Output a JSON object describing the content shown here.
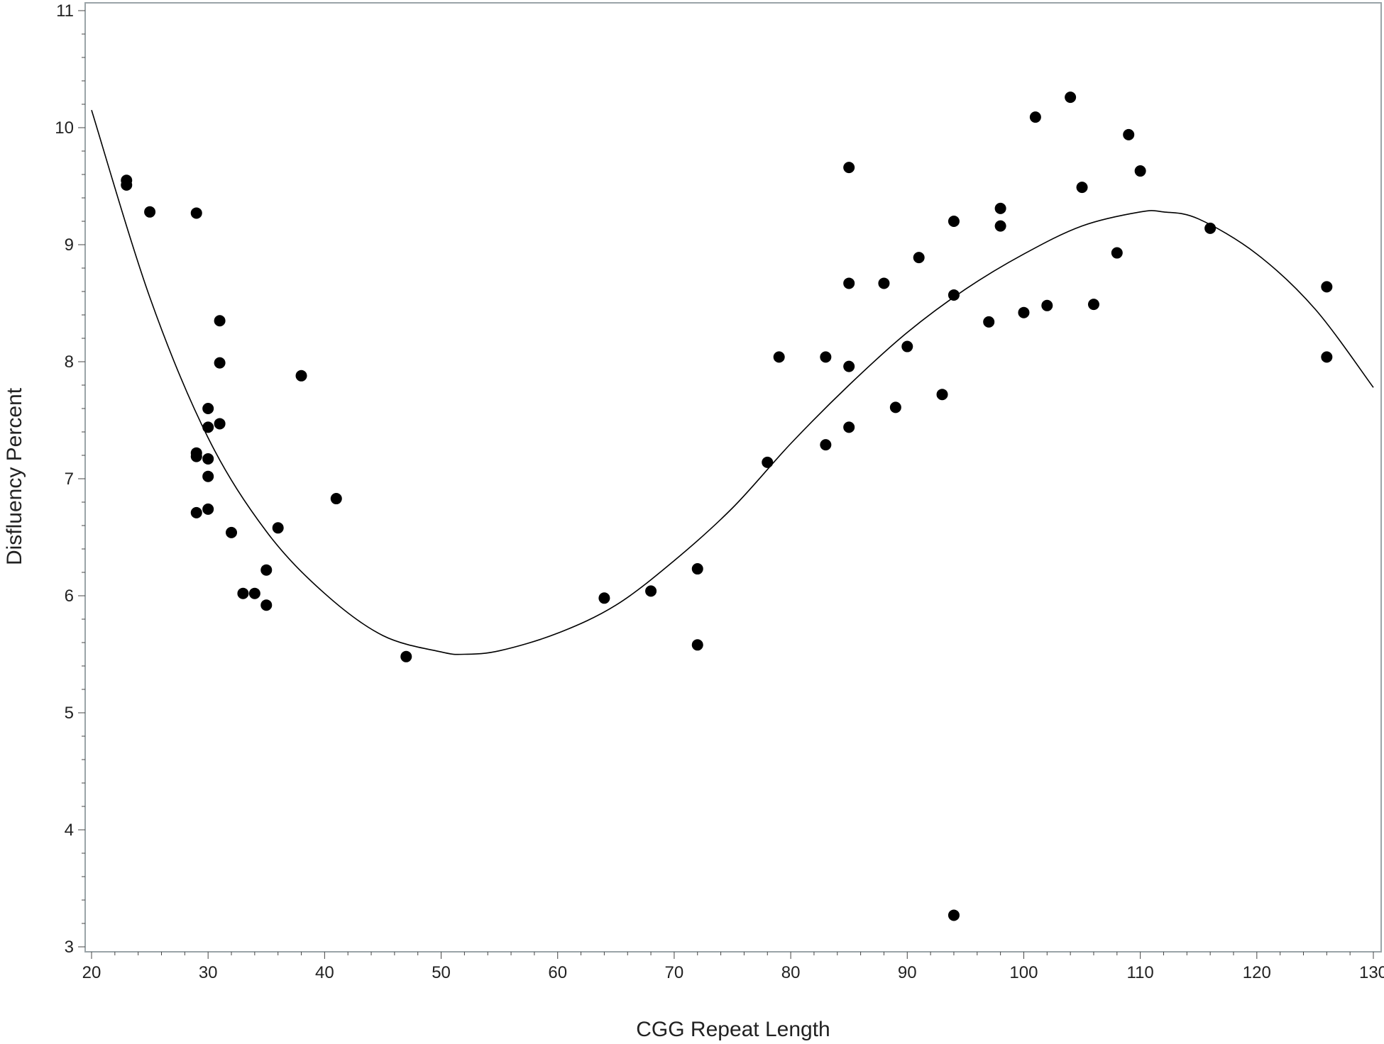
{
  "chart_data": {
    "type": "scatter",
    "title": "",
    "xlabel": "CGG Repeat Length",
    "ylabel": "Disfluency Percent",
    "xlim": [
      20,
      130
    ],
    "ylim": [
      3,
      11
    ],
    "x_ticks": [
      20,
      30,
      40,
      50,
      60,
      70,
      80,
      90,
      100,
      110,
      120,
      130
    ],
    "y_ticks": [
      3,
      4,
      5,
      6,
      7,
      8,
      9,
      10,
      11
    ],
    "grid": false,
    "legend": "none",
    "colors": {
      "points": "#000000",
      "fit_line": "#000000",
      "frame": "#9aa4a8"
    },
    "series": [
      {
        "kind": "points",
        "points": [
          [
            23,
            9.55
          ],
          [
            23,
            9.51
          ],
          [
            25,
            9.28
          ],
          [
            29,
            9.27
          ],
          [
            29,
            7.22
          ],
          [
            29,
            7.19
          ],
          [
            29,
            6.71
          ],
          [
            30,
            7.6
          ],
          [
            30,
            7.44
          ],
          [
            30,
            7.17
          ],
          [
            30,
            7.02
          ],
          [
            30,
            6.74
          ],
          [
            31,
            8.35
          ],
          [
            31,
            7.99
          ],
          [
            31,
            7.47
          ],
          [
            32,
            6.54
          ],
          [
            33,
            6.02
          ],
          [
            34,
            6.02
          ],
          [
            35,
            6.22
          ],
          [
            35,
            5.92
          ],
          [
            36,
            6.58
          ],
          [
            38,
            7.88
          ],
          [
            41,
            6.83
          ],
          [
            47,
            5.48
          ],
          [
            64,
            5.98
          ],
          [
            68,
            6.04
          ],
          [
            72,
            6.23
          ],
          [
            72,
            5.58
          ],
          [
            78,
            7.14
          ],
          [
            79,
            8.04
          ],
          [
            83,
            8.04
          ],
          [
            83,
            7.29
          ],
          [
            85,
            9.66
          ],
          [
            85,
            8.67
          ],
          [
            85,
            7.96
          ],
          [
            85,
            7.44
          ],
          [
            88,
            8.67
          ],
          [
            89,
            7.61
          ],
          [
            90,
            8.13
          ],
          [
            91,
            8.89
          ],
          [
            93,
            7.72
          ],
          [
            94,
            9.2
          ],
          [
            94,
            8.57
          ],
          [
            94,
            3.27
          ],
          [
            97,
            8.34
          ],
          [
            98,
            9.31
          ],
          [
            98,
            9.16
          ],
          [
            100,
            8.42
          ],
          [
            101,
            10.09
          ],
          [
            102,
            8.48
          ],
          [
            104,
            10.26
          ],
          [
            105,
            9.49
          ],
          [
            106,
            8.49
          ],
          [
            108,
            8.93
          ],
          [
            109,
            9.94
          ],
          [
            110,
            9.63
          ],
          [
            116,
            9.14
          ],
          [
            126,
            8.64
          ],
          [
            126,
            8.04
          ]
        ]
      },
      {
        "kind": "fit-line",
        "points": [
          [
            20,
            10.15
          ],
          [
            25,
            8.55
          ],
          [
            30,
            7.35
          ],
          [
            35,
            6.55
          ],
          [
            40,
            6.02
          ],
          [
            45,
            5.66
          ],
          [
            50,
            5.52
          ],
          [
            52,
            5.5
          ],
          [
            55,
            5.53
          ],
          [
            60,
            5.68
          ],
          [
            65,
            5.92
          ],
          [
            70,
            6.3
          ],
          [
            75,
            6.75
          ],
          [
            80,
            7.3
          ],
          [
            85,
            7.8
          ],
          [
            90,
            8.25
          ],
          [
            95,
            8.62
          ],
          [
            100,
            8.92
          ],
          [
            105,
            9.16
          ],
          [
            110,
            9.28
          ],
          [
            112,
            9.28
          ],
          [
            115,
            9.22
          ],
          [
            120,
            8.92
          ],
          [
            125,
            8.45
          ],
          [
            130,
            7.78
          ]
        ]
      }
    ]
  }
}
